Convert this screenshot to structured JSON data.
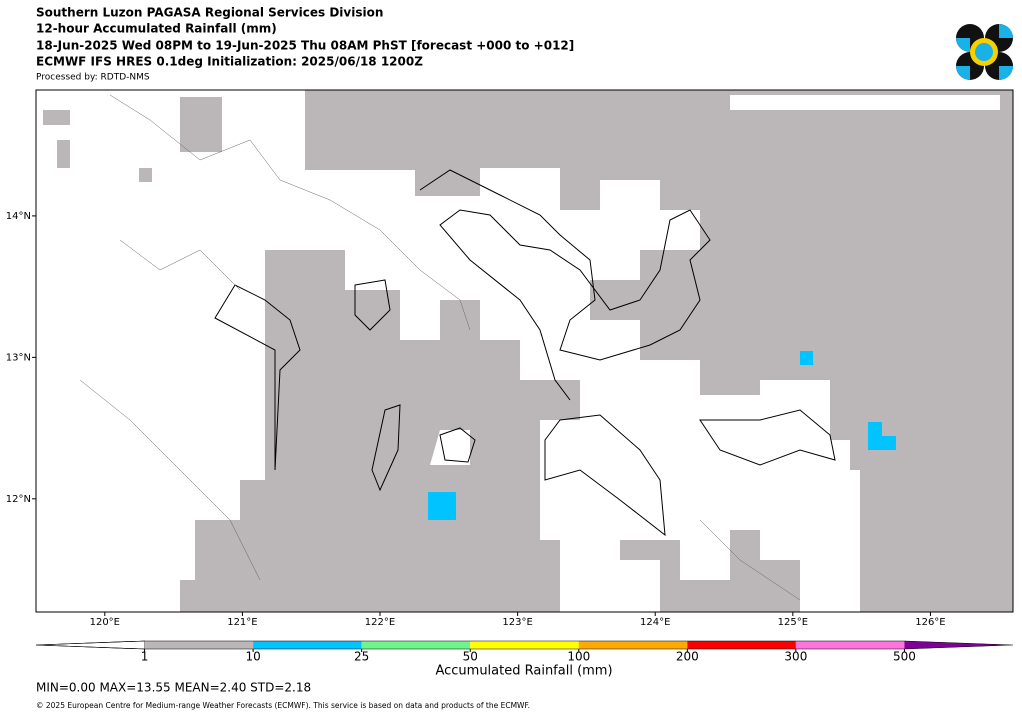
{
  "header": {
    "lines": [
      "Southern Luzon PAGASA Regional Services Division",
      "12-hour Accumulated Rainfall (mm)",
      "18-Jun-2025 Wed 08PM to 19-Jun-2025 Thu 08AM PhST [forecast +000 to +012]",
      "ECMWF IFS HRES 0.1deg Initialization: 2025/06/18 1200Z"
    ],
    "processed_by": "Processed by: RDTD-NMS"
  },
  "map": {
    "xlim": [
      119.5,
      126.6
    ],
    "ylim": [
      11.2,
      14.89
    ],
    "xticks": [
      {
        "value": 120,
        "label": "120°E"
      },
      {
        "value": 121,
        "label": "121°E"
      },
      {
        "value": 122,
        "label": "122°E"
      },
      {
        "value": 123,
        "label": "123°E"
      },
      {
        "value": 124,
        "label": "124°E"
      },
      {
        "value": 125,
        "label": "125°E"
      },
      {
        "value": 126,
        "label": "126°E"
      }
    ],
    "yticks": [
      {
        "value": 12,
        "label": "12°N"
      },
      {
        "value": 13,
        "label": "13°N"
      },
      {
        "value": 14,
        "label": "14°N"
      }
    ]
  },
  "colorbar": {
    "ticks": [
      1,
      10,
      25,
      50,
      100,
      200,
      300,
      500
    ],
    "colors": [
      "#bbb7b8",
      "#00c3ff",
      "#6ff58c",
      "#ffff00",
      "#ffaa00",
      "#ff0000",
      "#ff73dc",
      "#7f0099"
    ],
    "under_color": "#ffffff",
    "label": "Accumulated Rainfall (mm)"
  },
  "stats": "MIN=0.00   MAX=13.55   MEAN=2.40   STD=2.18",
  "footer": "© 2025 European Centre for Medium-range Weather Forecasts (ECMWF). This service is based on data and products of the ECMWF."
}
